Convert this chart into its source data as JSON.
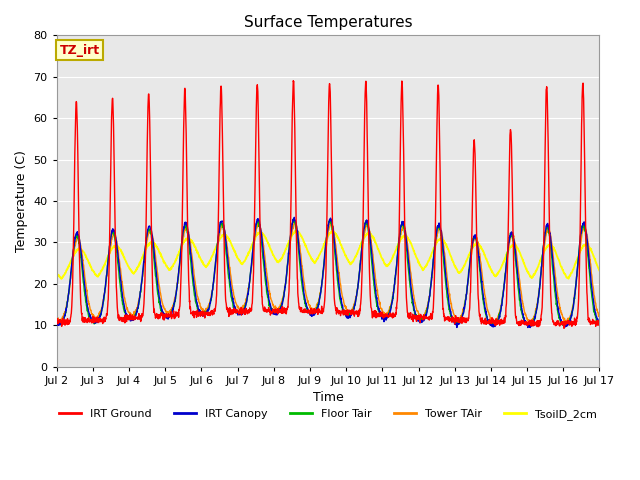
{
  "title": "Surface Temperatures",
  "xlabel": "Time",
  "ylabel": "Temperature (C)",
  "ylim": [
    0,
    80
  ],
  "yticks": [
    0,
    10,
    20,
    30,
    40,
    50,
    60,
    70,
    80
  ],
  "x_labels": [
    "Jul 2",
    "Jul 3",
    "Jul 4",
    "Jul 5",
    "Jul 6",
    "Jul 7",
    "Jul 8",
    "Jul 9",
    "Jul 10",
    "Jul 11",
    "Jul 12",
    "Jul 13",
    "Jul 14",
    "Jul 15",
    "Jul 16",
    "Jul 17"
  ],
  "bg_color": "#e8e8e8",
  "legend": [
    {
      "label": "IRT Ground",
      "color": "#ff0000"
    },
    {
      "label": "IRT Canopy",
      "color": "#0000cc"
    },
    {
      "label": "Floor Tair",
      "color": "#00bb00"
    },
    {
      "label": "Tower TAir",
      "color": "#ff8800"
    },
    {
      "label": "TsoilD_2cm",
      "color": "#ffff00"
    }
  ],
  "annotation_text": "TZ_irt",
  "annotation_color": "#cc0000",
  "annotation_bg": "#ffffcc",
  "annotation_border": "#bbaa00"
}
